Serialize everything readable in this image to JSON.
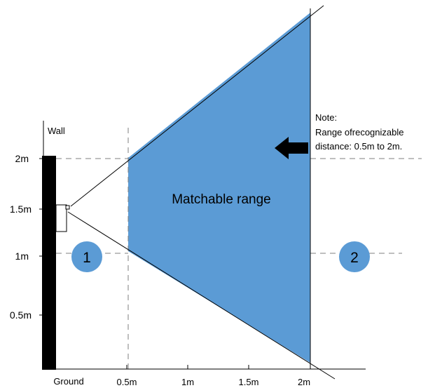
{
  "colors": {
    "range_fill": "#5b9bd5",
    "wall": "#000000",
    "ink": "#000000",
    "dashed": "#7f7f7f",
    "badge_fill": "#5b9bd5"
  },
  "axes": {
    "x_ticks": [
      "0.5m",
      "1m",
      "1.5m",
      "2m"
    ],
    "y_ticks": [
      "2m",
      "1.5m",
      "1m",
      "0.5m"
    ],
    "ground_label": "Ground",
    "wall_label": "Wall"
  },
  "range_label": "Matchable range",
  "note": {
    "title": "Note:",
    "line1": "Range ofrecognizable",
    "line2": "distance: 0.5m to 2m."
  },
  "badges": {
    "left": "1",
    "right": "2"
  },
  "icons": {
    "arrow": "left-arrow-icon",
    "device": "face-terminal-device-icon"
  }
}
